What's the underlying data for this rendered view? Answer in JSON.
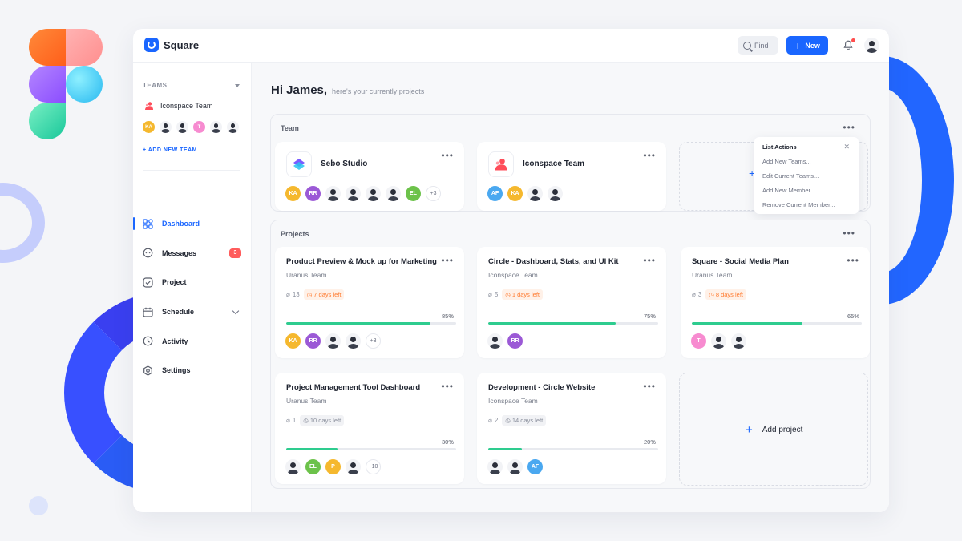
{
  "app": {
    "name": "Square"
  },
  "topbar": {
    "find_label": "Find",
    "new_label": "New"
  },
  "sidebar": {
    "teams_heading": "TEAMS",
    "team_name": "Iconspace Team",
    "team_avatars": [
      {
        "initials": "KA",
        "color": "#f5b82e"
      },
      {
        "initials": "",
        "color": ""
      },
      {
        "initials": "",
        "color": ""
      },
      {
        "initials": "T",
        "color": "#f78bd0"
      },
      {
        "initials": "",
        "color": ""
      },
      {
        "initials": "",
        "color": ""
      }
    ],
    "add_team_label": "+ ADD NEW TEAM",
    "nav": [
      {
        "label": "Dashboard",
        "icon": "dashboard-icon"
      },
      {
        "label": "Messages",
        "icon": "messages-icon",
        "badge": "3"
      },
      {
        "label": "Project",
        "icon": "project-icon"
      },
      {
        "label": "Schedule",
        "icon": "schedule-icon"
      },
      {
        "label": "Activity",
        "icon": "activity-icon"
      },
      {
        "label": "Settings",
        "icon": "settings-icon"
      }
    ]
  },
  "greeting": {
    "hi": "Hi James,",
    "sub": "here's your currently projects"
  },
  "team_section": {
    "title": "Team",
    "cards": [
      {
        "name": "Sebo Studio",
        "more": "+3",
        "avatars": [
          {
            "initials": "KA",
            "color": "#f5b82e"
          },
          {
            "initials": "RR",
            "color": "#9b59d6"
          },
          {
            "initials": "",
            "color": ""
          },
          {
            "initials": "",
            "color": ""
          },
          {
            "initials": "",
            "color": ""
          },
          {
            "initials": "",
            "color": ""
          },
          {
            "initials": "EL",
            "color": "#6cc24a"
          }
        ]
      },
      {
        "name": "Iconspace Team",
        "more": "",
        "avatars": [
          {
            "initials": "AF",
            "color": "#4aa8f0"
          },
          {
            "initials": "KA",
            "color": "#f5b82e"
          },
          {
            "initials": "",
            "color": ""
          },
          {
            "initials": "",
            "color": ""
          }
        ]
      }
    ],
    "list_actions": {
      "title": "List Actions",
      "items": [
        "Add New Teams...",
        "Edit Current Teams...",
        "Add New Member...",
        "Remove Current Member..."
      ]
    }
  },
  "projects_section": {
    "title": "Projects",
    "add_label": "Add project",
    "cards": [
      {
        "title": "Product Preview & Mock up for Marketing",
        "team": "Uranus Team",
        "attachments": "13",
        "days_left": "7 days left",
        "urgent": true,
        "percent": "85%",
        "progress": 0.85,
        "more": "+3",
        "avatars": [
          {
            "initials": "KA",
            "color": "#f5b82e"
          },
          {
            "initials": "RR",
            "color": "#9b59d6"
          },
          {
            "initials": "",
            "color": ""
          },
          {
            "initials": "",
            "color": ""
          }
        ]
      },
      {
        "title": "Circle - Dashboard, Stats, and UI Kit",
        "team": "Iconspace Team",
        "attachments": "5",
        "days_left": "1 days left",
        "urgent": true,
        "percent": "75%",
        "progress": 0.75,
        "more": "",
        "avatars": [
          {
            "initials": "",
            "color": ""
          },
          {
            "initials": "RR",
            "color": "#9b59d6"
          }
        ]
      },
      {
        "title": "Square - Social Media Plan",
        "team": "Uranus Team",
        "attachments": "3",
        "days_left": "8 days left",
        "urgent": true,
        "percent": "65%",
        "progress": 0.65,
        "more": "",
        "avatars": [
          {
            "initials": "T",
            "color": "#f78bd0"
          },
          {
            "initials": "",
            "color": ""
          },
          {
            "initials": "",
            "color": ""
          }
        ]
      },
      {
        "title": "Project Management Tool Dashboard",
        "team": "Uranus Team",
        "attachments": "1",
        "days_left": "10 days left",
        "urgent": false,
        "percent": "30%",
        "progress": 0.3,
        "more": "+10",
        "avatars": [
          {
            "initials": "",
            "color": ""
          },
          {
            "initials": "EL",
            "color": "#6cc24a"
          },
          {
            "initials": "P",
            "color": "#f5b82e"
          },
          {
            "initials": "",
            "color": ""
          }
        ]
      },
      {
        "title": "Development - Circle Website",
        "team": "Iconspace Team",
        "attachments": "2",
        "days_left": "14 days left",
        "urgent": false,
        "percent": "20%",
        "progress": 0.2,
        "more": "",
        "avatars": [
          {
            "initials": "",
            "color": ""
          },
          {
            "initials": "",
            "color": ""
          },
          {
            "initials": "AF",
            "color": "#4aa8f0"
          }
        ]
      }
    ]
  }
}
